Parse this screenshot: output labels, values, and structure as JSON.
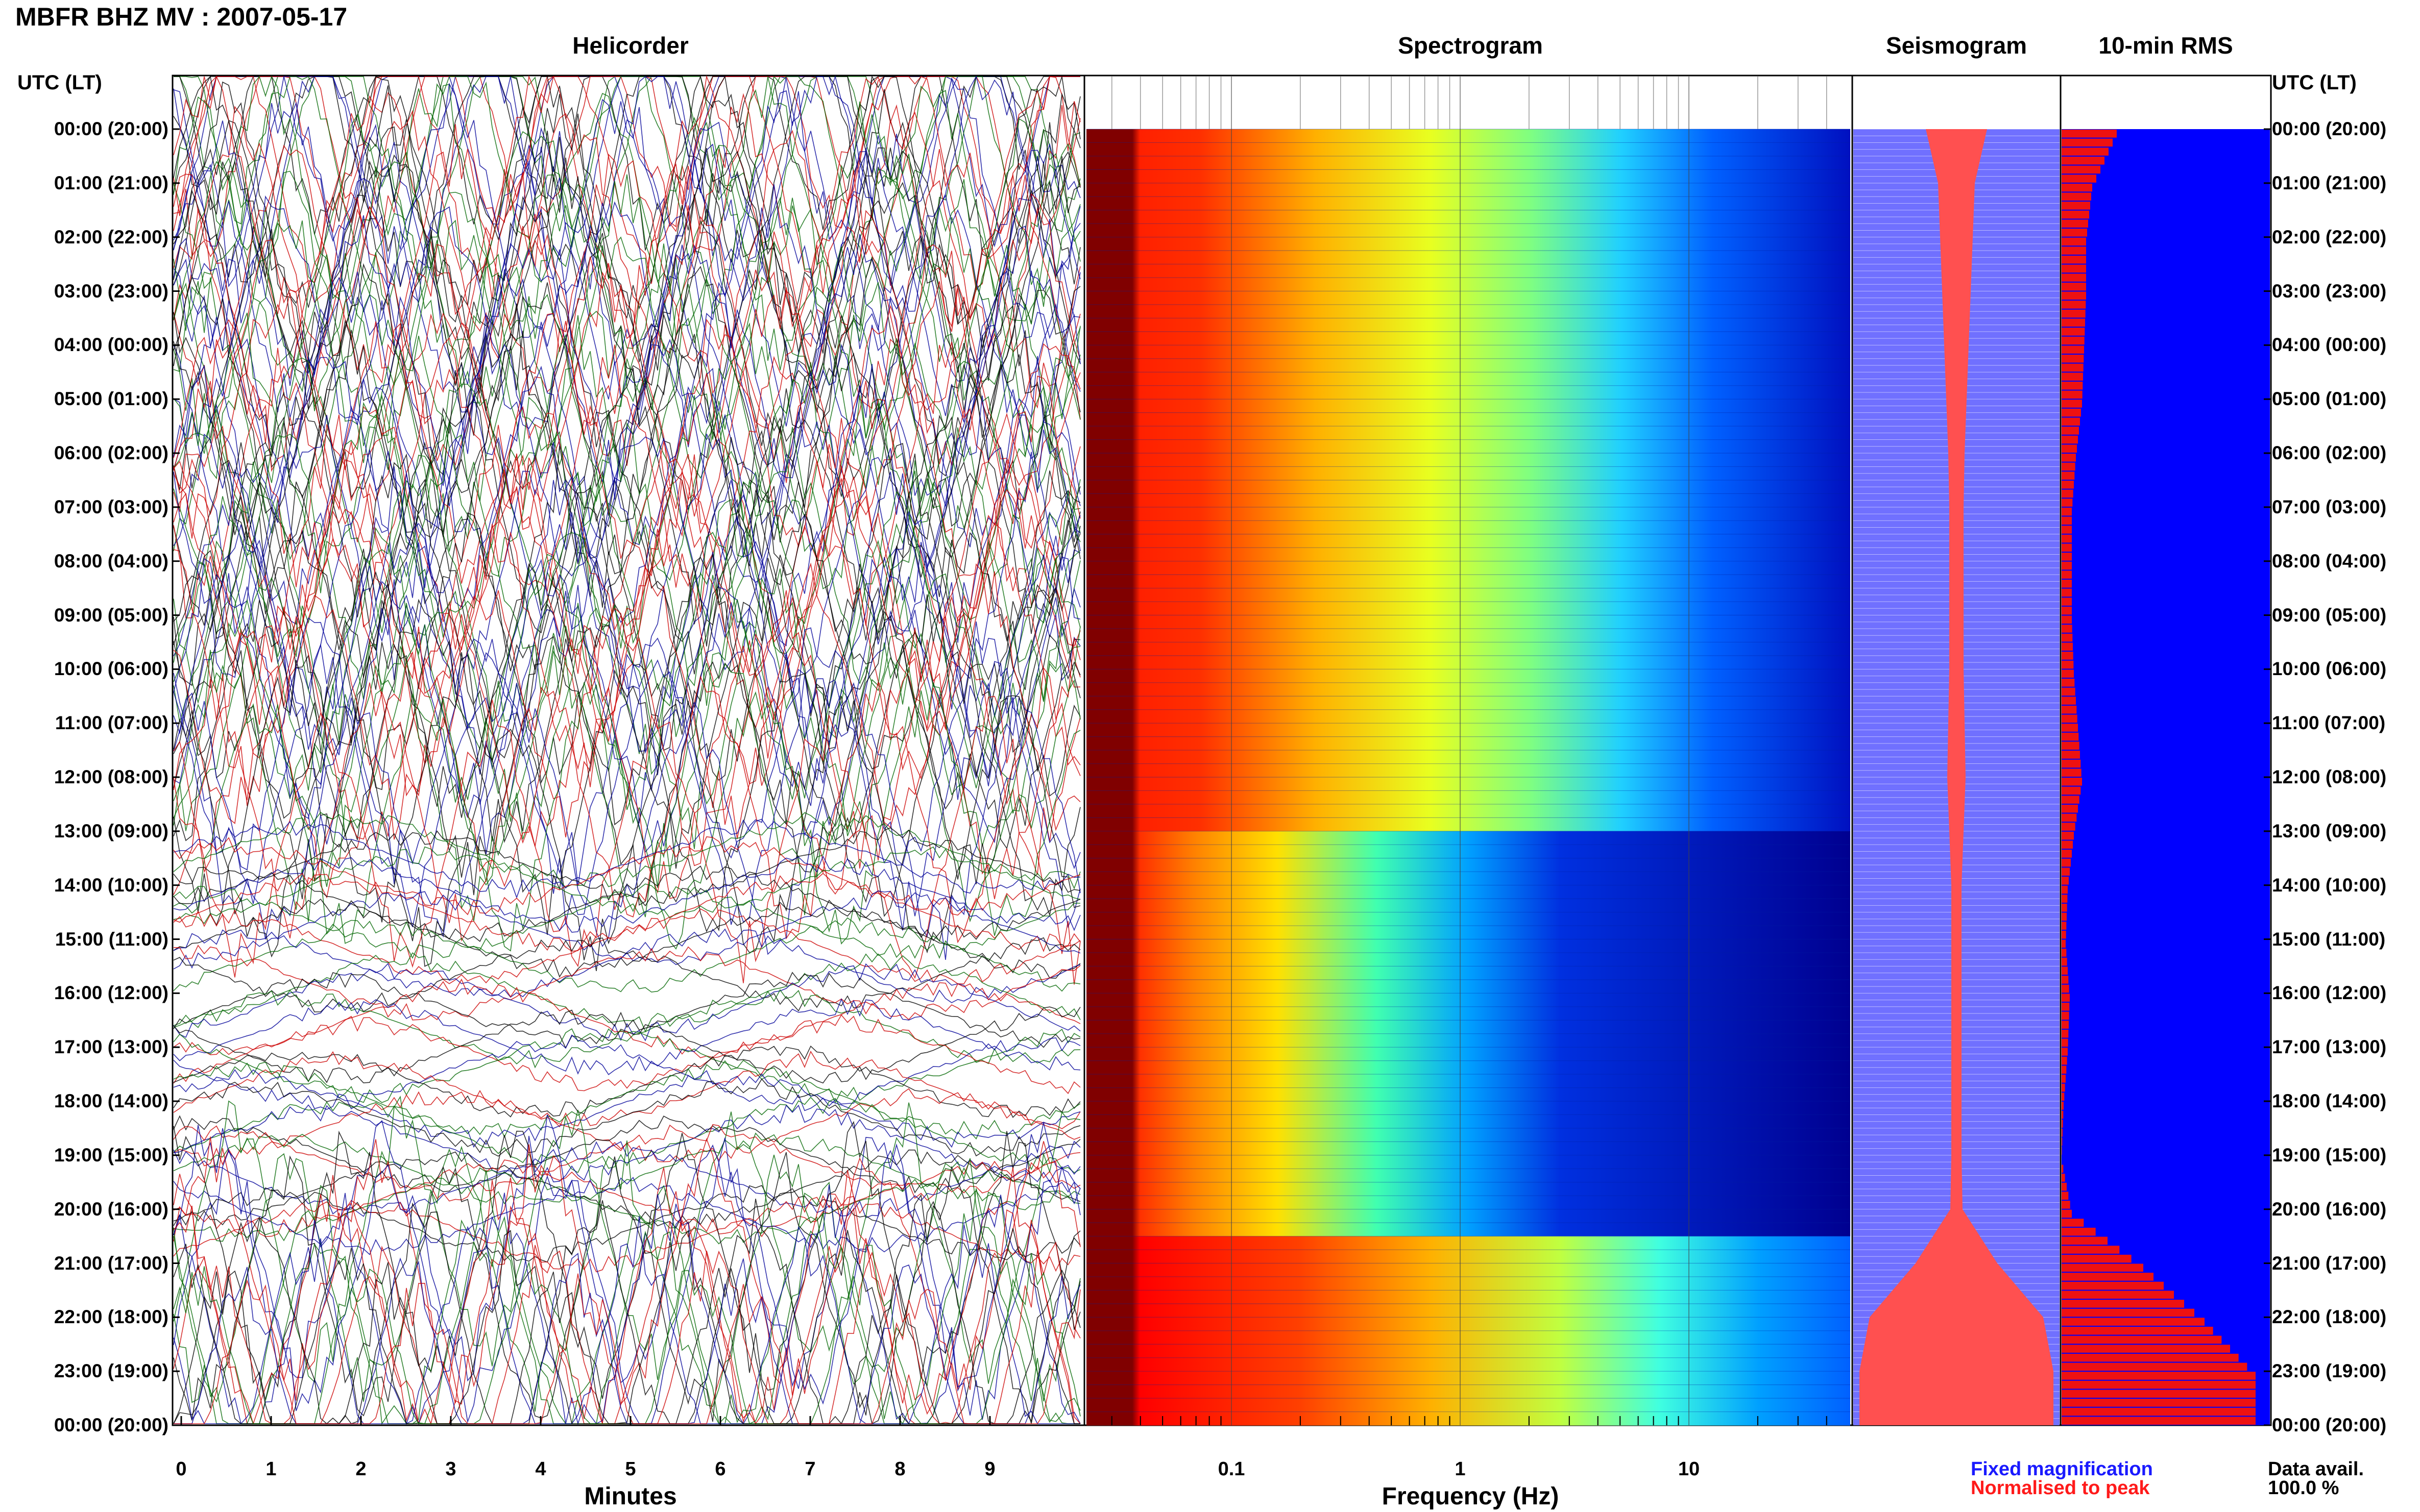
{
  "title": "MBFR BHZ MV : 2007-05-17",
  "panels": {
    "helicorder": "Helicorder",
    "spectrogram": "Spectrogram",
    "seismogram": "Seismogram",
    "rms": "10-min RMS"
  },
  "time_header": "UTC (LT)",
  "time_labels": [
    "00:00 (20:00)",
    "01:00 (21:00)",
    "02:00 (22:00)",
    "03:00 (23:00)",
    "04:00 (00:00)",
    "05:00 (01:00)",
    "06:00 (02:00)",
    "07:00 (03:00)",
    "08:00 (04:00)",
    "09:00 (05:00)",
    "10:00 (06:00)",
    "11:00 (07:00)",
    "12:00 (08:00)",
    "13:00 (09:00)",
    "14:00 (10:00)",
    "15:00 (11:00)",
    "16:00 (12:00)",
    "17:00 (13:00)",
    "18:00 (14:00)",
    "19:00 (15:00)",
    "20:00 (16:00)",
    "21:00 (17:00)",
    "22:00 (18:00)",
    "23:00 (19:00)",
    "00:00 (20:00)"
  ],
  "helicorder_xticks": [
    "0",
    "1",
    "2",
    "3",
    "4",
    "5",
    "6",
    "7",
    "8",
    "9"
  ],
  "helicorder_xlabel": "Minutes",
  "spectrogram_xticks": [
    "0.1",
    "1",
    "10"
  ],
  "spectrogram_xlabel": "Frequency (Hz)",
  "legend": {
    "fixed": "Fixed magnification",
    "normalised": "Normalised to peak",
    "fixed_color": "#1a1aff",
    "normalised_color": "#ff1a1a"
  },
  "data_avail_label": "Data avail.",
  "data_avail_value": "100.0 %",
  "chart_data": [
    {
      "type": "line",
      "title": "Helicorder",
      "xlabel": "Minutes",
      "xlim": [
        0,
        10
      ],
      "ylim": [
        "00:00",
        "24:00"
      ],
      "trace_colors": [
        "#000000",
        "#cc0000",
        "#006600",
        "#000099"
      ],
      "description_levels": [
        {
          "hour_start": 0,
          "hour_end": 13,
          "amplitude": "saturated"
        },
        {
          "hour_start": 13,
          "hour_end": 20,
          "amplitude": "reduced"
        },
        {
          "hour_start": 20,
          "hour_end": 24,
          "amplitude": "saturated"
        }
      ]
    },
    {
      "type": "heatmap",
      "title": "Spectrogram",
      "xlabel": "Frequency (Hz)",
      "xscale": "log",
      "xlim": [
        0.02,
        50
      ],
      "ylim": [
        "00:00",
        "24:00"
      ],
      "colormap": "jet"
    },
    {
      "type": "area",
      "title": "Seismogram",
      "ylim": [
        "00:00",
        "24:00"
      ],
      "hours": [
        0,
        1,
        2,
        3,
        4,
        5,
        6,
        7,
        8,
        9,
        10,
        11,
        12,
        13,
        14,
        15,
        16,
        17,
        18,
        19,
        20,
        21,
        22,
        23,
        24
      ],
      "normalised_halfwidth": [
        0.3,
        0.18,
        0.16,
        0.14,
        0.12,
        0.1,
        0.08,
        0.07,
        0.07,
        0.07,
        0.07,
        0.08,
        0.09,
        0.07,
        0.05,
        0.05,
        0.05,
        0.05,
        0.05,
        0.05,
        0.06,
        0.4,
        0.85,
        0.95,
        0.95
      ]
    },
    {
      "type": "bar",
      "title": "10-min RMS",
      "ylim": [
        "00:00",
        "24:00"
      ],
      "hours": [
        0,
        1,
        2,
        3,
        4,
        5,
        6,
        7,
        8,
        9,
        10,
        11,
        12,
        13,
        14,
        15,
        16,
        17,
        18,
        19,
        20,
        21,
        22,
        23,
        24
      ],
      "relative_rms": [
        0.27,
        0.15,
        0.12,
        0.12,
        0.11,
        0.1,
        0.07,
        0.05,
        0.05,
        0.05,
        0.06,
        0.08,
        0.1,
        0.06,
        0.03,
        0.02,
        0.04,
        0.03,
        0.01,
        0.0,
        0.05,
        0.4,
        0.7,
        0.95,
        0.95
      ]
    }
  ]
}
